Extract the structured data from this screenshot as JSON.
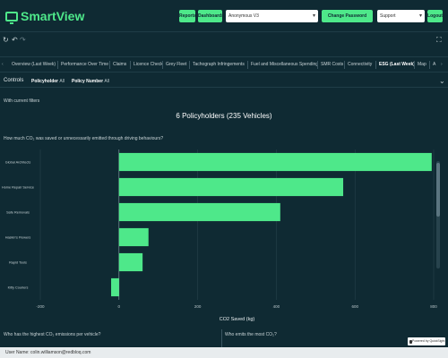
{
  "app": {
    "logo_prefix": "Smart",
    "logo_suffix": "View"
  },
  "header": {
    "reports_label": "Reports",
    "dashboards_label": "Dashboards",
    "account_select": "Anonymous V3",
    "change_password_label": "Change Password",
    "support_select": "Support",
    "logout_label": "Logout"
  },
  "tabs": [
    "Overview (Last Week)",
    "Performance Over Time",
    "Claims",
    "Licence Check",
    "Grey Fleet",
    "Tachograph Infringements",
    "Fuel and Miscellaneous Spending",
    "SMR Costs",
    "Connectivity",
    "ESG (Last Week)",
    "Map",
    "A"
  ],
  "controls": {
    "title": "Controls",
    "policyholder_label": "Policyholder",
    "policyholder_value": "All",
    "policy_number_label": "Policy Number",
    "policy_number_value": "All"
  },
  "main": {
    "filters_text": "With current filters",
    "headline": "6 Policyholders (235 Vehicles)",
    "question_main": "How much CO₂ was saved or unnecessarily emitted through driving behaviours?",
    "question_left": "Who has the highest CO₂ emissions per vehicle?",
    "question_right": "Who emits the most CO₂?",
    "powered_by": "Powered by QuickSight"
  },
  "footer": {
    "user_text": "User Name: colin.williamson@redbloq.com"
  },
  "colors": {
    "bar": "#4ee88a",
    "background": "#0f2a33",
    "accent": "#4ee88a"
  },
  "chart_data": {
    "type": "bar",
    "orientation": "horizontal",
    "categories": [
      "Global Architects",
      "Home Repair Service",
      "Safe Removals",
      "Haskin's Flowers",
      "Rapid Tools",
      "Kitty Couriers"
    ],
    "values": [
      795,
      570,
      410,
      75,
      60,
      -20
    ],
    "xlabel": "CO2 Saved (kg)",
    "ylabel": "",
    "xlim": [
      -200,
      800
    ],
    "xticks": [
      "-200",
      "0",
      "200",
      "400",
      "600",
      "800"
    ],
    "grid": true
  }
}
